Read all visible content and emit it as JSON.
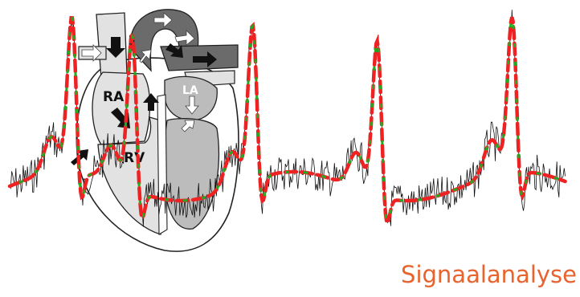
{
  "title": "Signaalanalyse",
  "heart": {
    "labels": {
      "right_atrium": "RA",
      "right_ventricle": "RV",
      "left_atrium": "LA"
    }
  },
  "colors": {
    "title": "#e8632d",
    "noisy_signal": "#111111",
    "filtered_signal": "#ee2222",
    "reference_signal": "#22aa22",
    "heart_light": "#e2e2e2",
    "heart_mid": "#bcbcbc",
    "heart_dark": "#6b6b6b"
  },
  "icons": [
    "flow-arrow-icon"
  ]
}
